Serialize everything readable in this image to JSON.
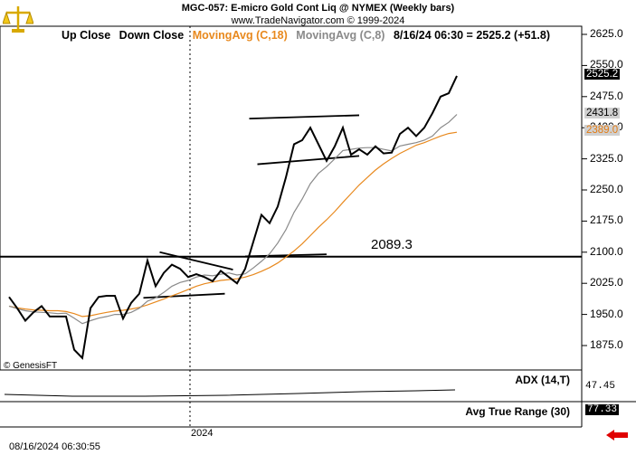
{
  "header": {
    "title": "MGC-057:  E-micro Gold Cont Liq @ NYMEX  (Weekly bars)",
    "subtitle": "www.TradeNavigator.com © 1999-2024"
  },
  "legend": {
    "up_close": "Up Close",
    "down_close": "Down Close",
    "ma18": "MovingAvg (C,18)",
    "ma8": "MovingAvg (C,8)",
    "last": "8/16/24 06:30 = 2525.2 (+51.8)"
  },
  "tags": {
    "last": "2525.2",
    "ma8": "2431.8",
    "ma18": "2389.0"
  },
  "level_label": "2089.3",
  "copyright": "© GenesisFT",
  "indicators": {
    "adx_label": "ADX (14,T)",
    "adx_value": "47.45",
    "atr_label": "Avg True Range (30)",
    "atr_value": "77.33"
  },
  "footer": {
    "timestamp": "08/16/2024 06:30:55",
    "year_label": "2024"
  },
  "colors": {
    "price": "#000000",
    "ma18": "#e8891e",
    "ma8": "#8a8a8a",
    "level": "#000000"
  },
  "chart_data": {
    "type": "line",
    "title": "MGC-057:  E-micro Gold Cont Liq @ NYMEX  (Weekly bars)",
    "y_ticks": [
      "2625.0",
      "2550.0",
      "2475.0",
      "2400.0",
      "2325.0",
      "2250.0",
      "2175.0",
      "2100.0",
      "2025.0",
      "1950.0",
      "1875.0"
    ],
    "ylim": [
      1840,
      2660
    ],
    "horizontal_level": 2089.3,
    "series": [
      {
        "name": "Close",
        "values": [
          1992,
          1965,
          1935,
          1955,
          1970,
          1945,
          1945,
          1945,
          1865,
          1845,
          1965,
          1992,
          1995,
          1995,
          1940,
          1978,
          2000,
          2080,
          2018,
          2050,
          2070,
          2060,
          2040,
          2047,
          2040,
          2030,
          2055,
          2040,
          2025,
          2060,
          2125,
          2190,
          2170,
          2210,
          2280,
          2360,
          2370,
          2400,
          2360,
          2320,
          2355,
          2400,
          2335,
          2348,
          2335,
          2355,
          2338,
          2340,
          2385,
          2400,
          2380,
          2400,
          2435,
          2475,
          2483,
          2525
        ]
      },
      {
        "name": "MovingAvg (C,18)",
        "values": [
          1970,
          1966,
          1963,
          1961,
          1960,
          1959,
          1959,
          1957,
          1952,
          1945,
          1947,
          1951,
          1955,
          1958,
          1960,
          1963,
          1967,
          1973,
          1980,
          1987,
          1995,
          2002,
          2010,
          2018,
          2024,
          2028,
          2032,
          2034,
          2036,
          2040,
          2046,
          2054,
          2063,
          2074,
          2088,
          2103,
          2120,
          2140,
          2160,
          2178,
          2198,
          2220,
          2241,
          2262,
          2280,
          2298,
          2313,
          2326,
          2338,
          2348,
          2358,
          2364,
          2372,
          2380,
          2386,
          2389
        ]
      },
      {
        "name": "MovingAvg (C,8)",
        "values": [
          1970,
          1964,
          1959,
          1956,
          1955,
          1954,
          1952,
          1953,
          1941,
          1928,
          1935,
          1941,
          1945,
          1950,
          1950,
          1955,
          1965,
          1982,
          1990,
          2003,
          2018,
          2027,
          2032,
          2040,
          2045,
          2043,
          2047,
          2050,
          2045,
          2048,
          2062,
          2078,
          2096,
          2122,
          2154,
          2196,
          2228,
          2265,
          2290,
          2306,
          2325,
          2345,
          2348,
          2351,
          2352,
          2352,
          2348,
          2344,
          2356,
          2360,
          2364,
          2370,
          2380,
          2400,
          2413,
          2432
        ]
      }
    ],
    "trendlines": [
      {
        "x": [
          16.5,
          26.5
        ],
        "y": [
          1990,
          2000
        ]
      },
      {
        "x": [
          18.5,
          27.5
        ],
        "y": [
          2100,
          2058
        ]
      },
      {
        "x": [
          29,
          39
        ],
        "y": [
          2090,
          2095
        ]
      },
      {
        "x": [
          29.5,
          43
        ],
        "y": [
          2422,
          2430
        ]
      },
      {
        "x": [
          30.5,
          43
        ],
        "y": [
          2312,
          2332
        ]
      }
    ],
    "grid": false,
    "legend": "top"
  }
}
